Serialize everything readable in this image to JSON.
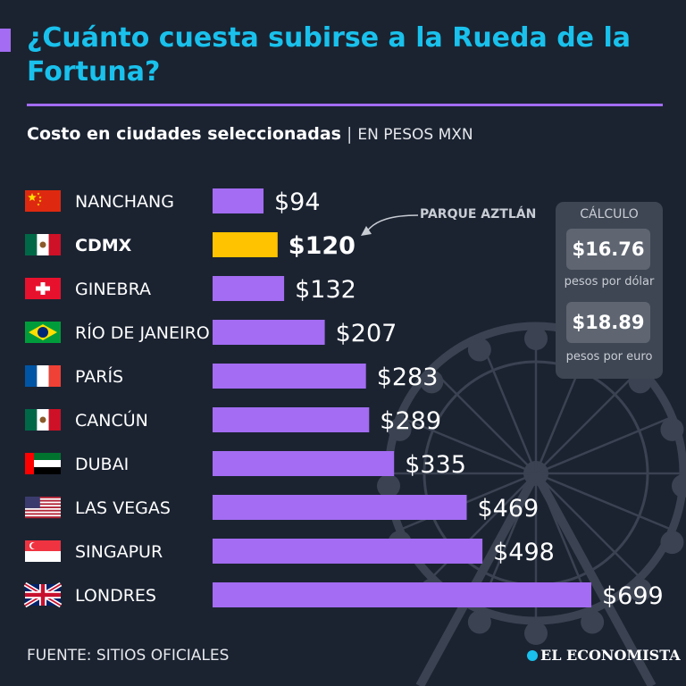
{
  "title": "¿Cuánto cuesta subirse a la Rueda de la Fortuna?",
  "subtitle": {
    "main": "Costo en ciudades seleccionadas",
    "separator": "|",
    "unit": "EN PESOS MXN"
  },
  "colors": {
    "accent": "#a36cf2",
    "highlight": "#ffc300",
    "title": "#19c1ec",
    "background": "#1b2331"
  },
  "chart_data": {
    "type": "bar",
    "orientation": "horizontal",
    "title": "¿Cuánto cuesta subirse a la Rueda de la Fortuna?",
    "subtitle": "Costo en ciudades seleccionadas | EN PESOS MXN",
    "categories": [
      "NANCHANG",
      "CDMX",
      "GINEBRA",
      "RÍO DE JANEIRO",
      "PARÍS",
      "CANCÚN",
      "DUBAI",
      "LAS VEGAS",
      "SINGAPUR",
      "LONDRES"
    ],
    "values": [
      94,
      120,
      132,
      207,
      283,
      289,
      335,
      469,
      498,
      699
    ],
    "labels": [
      "$94",
      "$120",
      "$132",
      "$207",
      "$283",
      "$289",
      "$335",
      "$469",
      "$498",
      "$699"
    ],
    "flags": [
      "china-flag",
      "mexico-flag",
      "switzerland-flag",
      "brazil-flag",
      "france-flag",
      "mexico-flag",
      "uae-flag",
      "usa-flag",
      "singapore-flag",
      "uk-flag"
    ],
    "highlight_index": 1,
    "xlim": [
      0,
      699
    ],
    "annotation": {
      "text": "PARQUE AZTLÁN",
      "target": "CDMX"
    }
  },
  "calculation": {
    "title": "CÁLCULO",
    "dollar_rate": "$16.76",
    "dollar_label": "pesos por dólar",
    "euro_rate": "$18.89",
    "euro_label": "pesos por euro"
  },
  "footer": {
    "source": "FUENTE: SITIOS OFICIALES",
    "brand": "EL ECONOMISTA"
  }
}
